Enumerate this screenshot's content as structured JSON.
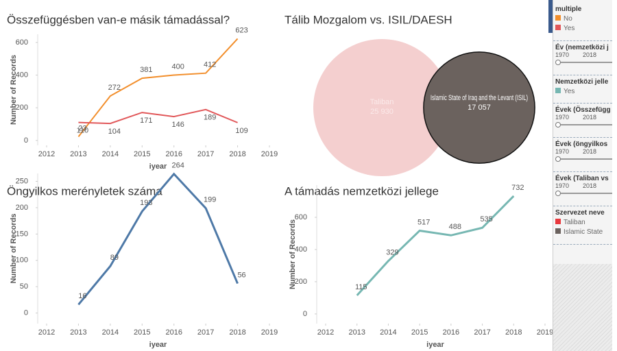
{
  "chart_data": [
    {
      "type": "line",
      "title": "Összefüggésben van-e másik támadással?",
      "xlabel": "iyear",
      "ylabel": "Number of Records",
      "x": [
        2013,
        2014,
        2015,
        2016,
        2017,
        2018
      ],
      "series": [
        {
          "name": "No",
          "color": "#f28e2b",
          "values": [
            23,
            272,
            381,
            400,
            412,
            623
          ]
        },
        {
          "name": "Yes",
          "color": "#e15759",
          "values": [
            110,
            104,
            171,
            146,
            189,
            109
          ]
        }
      ],
      "xlim": [
        2012,
        2019
      ],
      "xticks": [
        2012,
        2013,
        2014,
        2015,
        2016,
        2017,
        2018,
        2019
      ],
      "ylim": [
        -30,
        650
      ],
      "yticks": [
        0,
        200,
        400,
        600
      ]
    },
    {
      "type": "bubble",
      "title": "Tálib Mozgalom vs. ISIL/DAESH",
      "categories": [
        "Taliban",
        "Islamic State of Iraq and the Levant (ISIL)"
      ],
      "values": [
        25930,
        17057
      ],
      "value_labels": [
        "25 930",
        "17 057"
      ],
      "colors": [
        "#f4cfcf",
        "#6b625e"
      ]
    },
    {
      "type": "line",
      "title": "Öngyilkos merényletek száma",
      "xlabel": "iyear",
      "ylabel": "Number of Records",
      "x": [
        2013,
        2014,
        2015,
        2016,
        2017,
        2018
      ],
      "series": [
        {
          "name": "Yes",
          "color": "#4e79a7",
          "values": [
            16,
            89,
            193,
            264,
            199,
            56
          ]
        }
      ],
      "xlim": [
        2012,
        2019
      ],
      "xticks": [
        2012,
        2013,
        2014,
        2015,
        2016,
        2017,
        2018,
        2019
      ],
      "ylim": [
        -20,
        265
      ],
      "yticks": [
        0,
        50,
        100,
        150,
        200,
        250
      ]
    },
    {
      "type": "line",
      "title": "A támadás nemzetközi jellege",
      "xlabel": "iyear",
      "ylabel": "Number of Records",
      "x": [
        2013,
        2014,
        2015,
        2016,
        2017,
        2018
      ],
      "series": [
        {
          "name": "Yes",
          "color": "#76b7b2",
          "values": [
            115,
            329,
            517,
            488,
            535,
            732
          ]
        }
      ],
      "xlim": [
        2012,
        2019
      ],
      "xticks": [
        2012,
        2013,
        2014,
        2015,
        2016,
        2017,
        2018,
        2019
      ],
      "ylim": [
        -60,
        800
      ],
      "yticks": [
        0,
        200,
        400,
        600
      ]
    }
  ],
  "sidebar": {
    "sections": [
      {
        "title": "multiple",
        "items": [
          {
            "label": "No",
            "color": "#f28e2b"
          },
          {
            "label": "Yes",
            "color": "#e15759"
          }
        ]
      },
      {
        "title": "Év (nemzetközi j",
        "range": [
          "1970",
          "2018"
        ]
      },
      {
        "title": "Nemzetközi jelle",
        "items": [
          {
            "label": "Yes",
            "color": "#76b7b2"
          }
        ]
      },
      {
        "title": "Évek (Összefügg",
        "range": [
          "1970",
          "2018"
        ]
      },
      {
        "title": "Évek (öngyilkos",
        "range": [
          "1970",
          "2018"
        ]
      },
      {
        "title": "Évek (Taliban vs",
        "range": [
          "1970",
          "2018"
        ]
      },
      {
        "title": "Szervezet neve",
        "items": [
          {
            "label": "Taliban",
            "color": "#e8383d"
          },
          {
            "label": "Islamic State",
            "color": "#6b625e"
          }
        ]
      }
    ]
  }
}
